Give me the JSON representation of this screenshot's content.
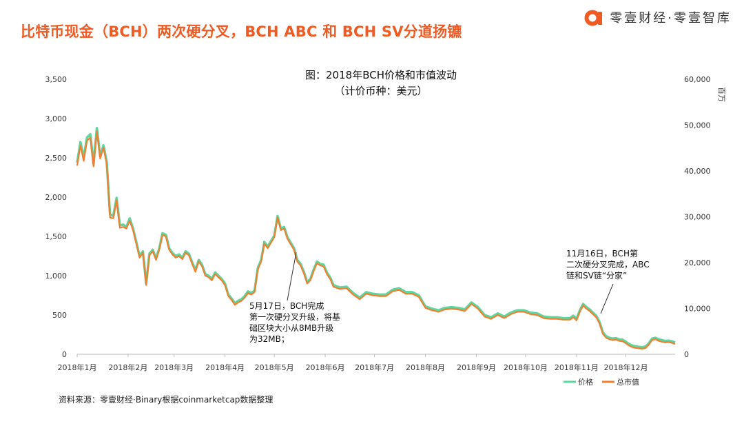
{
  "header": {
    "headline": "比特币现金（BCH）两次硬分叉，BCH ABC 和 BCH SV分道扬镳",
    "brand_text": "零壹财经·零壹智库",
    "brand_color": "#f05a23"
  },
  "footer": {
    "source": "资料来源：零壹财经·Binary根据coinmarketcap数据整理"
  },
  "chart_data": {
    "type": "line",
    "title": "图：2018年BCH价格和市值波动",
    "subtitle": "（计价币种：美元）",
    "y_left": {
      "range": [
        0,
        3500
      ],
      "ticks": [
        "0",
        "500",
        "1,000",
        "1,500",
        "2,000",
        "2,500",
        "3,000",
        "3,500"
      ]
    },
    "y_right": {
      "label": "百万",
      "range": [
        0,
        60000
      ],
      "ticks": [
        "0",
        "10,000",
        "20,000",
        "30,000",
        "40,000",
        "50,000",
        "60,000"
      ]
    },
    "x_ticks": [
      "2018年1月",
      "2018年2月",
      "2018年3月",
      "2018年4月",
      "2018年5月",
      "2018年6月",
      "2018年7月",
      "2018年8月",
      "2018年9月",
      "2018年10月",
      "2018年11月",
      "2018年12月"
    ],
    "x_days": [
      0,
      31,
      59,
      90,
      120,
      151,
      181,
      212,
      243,
      273,
      304,
      334
    ],
    "x_range_days": [
      0,
      364
    ],
    "grid": false,
    "legend_position": "bottom-right",
    "series": [
      {
        "name": "价格",
        "axis": "left",
        "color": "#5ed6a0",
        "x": [
          0,
          2,
          4,
          6,
          8,
          10,
          12,
          13,
          14,
          16,
          18,
          20,
          22,
          24,
          26,
          28,
          30,
          32,
          34,
          36,
          38,
          40,
          42,
          44,
          46,
          48,
          50,
          52,
          54,
          56,
          58,
          60,
          62,
          64,
          66,
          68,
          70,
          72,
          74,
          76,
          78,
          80,
          82,
          84,
          86,
          88,
          90,
          92,
          94,
          96,
          98,
          100,
          102,
          104,
          106,
          108,
          110,
          112,
          114,
          116,
          118,
          120,
          122,
          124,
          126,
          128,
          130,
          132,
          134,
          136,
          138,
          140,
          142,
          144,
          146,
          148,
          150,
          152,
          154,
          156,
          160,
          164,
          168,
          172,
          176,
          180,
          184,
          188,
          192,
          196,
          200,
          204,
          208,
          212,
          216,
          220,
          224,
          228,
          232,
          236,
          240,
          244,
          248,
          252,
          256,
          260,
          264,
          268,
          272,
          276,
          280,
          284,
          288,
          292,
          296,
          300,
          302,
          304,
          306,
          308,
          310,
          312,
          314,
          316,
          318,
          320,
          322,
          324,
          326,
          328,
          330,
          332,
          334,
          336,
          338,
          340,
          342,
          344,
          346,
          348,
          350,
          352,
          354,
          356,
          358,
          360,
          362,
          364
        ],
        "values": [
          2440,
          2700,
          2500,
          2760,
          2800,
          2420,
          2880,
          2700,
          2520,
          2660,
          2450,
          1780,
          1760,
          1990,
          1640,
          1650,
          1620,
          1730,
          1600,
          1430,
          1250,
          1310,
          900,
          1280,
          1330,
          1220,
          1350,
          1540,
          1520,
          1350,
          1290,
          1250,
          1270,
          1230,
          1310,
          1280,
          1170,
          1070,
          1200,
          1140,
          1020,
          1000,
          960,
          1040,
          1000,
          960,
          900,
          760,
          710,
          650,
          680,
          700,
          740,
          800,
          780,
          810,
          1100,
          1200,
          1430,
          1370,
          1440,
          1510,
          1760,
          1600,
          1620,
          1490,
          1420,
          1350,
          1200,
          1150,
          1050,
          920,
          960,
          1080,
          1180,
          1150,
          1140,
          1040,
          980,
          880,
          850,
          860,
          780,
          720,
          790,
          770,
          760,
          760,
          820,
          840,
          790,
          790,
          750,
          610,
          580,
          560,
          590,
          600,
          590,
          570,
          660,
          600,
          500,
          470,
          520,
          480,
          530,
          560,
          560,
          530,
          520,
          480,
          470,
          470,
          460,
          460,
          490,
          450,
          560,
          640,
          600,
          570,
          530,
          490,
          410,
          280,
          230,
          210,
          200,
          205,
          190,
          185,
          160,
          130,
          110,
          100,
          95,
          90,
          100,
          140,
          200,
          210,
          190,
          180,
          170,
          175,
          165,
          150
        ]
      },
      {
        "name": "总市值",
        "axis": "left",
        "color": "#f08030",
        "x": [
          0,
          2,
          4,
          6,
          8,
          10,
          12,
          13,
          14,
          16,
          18,
          20,
          22,
          24,
          26,
          28,
          30,
          32,
          34,
          36,
          38,
          40,
          42,
          44,
          46,
          48,
          50,
          52,
          54,
          56,
          58,
          60,
          62,
          64,
          66,
          68,
          70,
          72,
          74,
          76,
          78,
          80,
          82,
          84,
          86,
          88,
          90,
          92,
          94,
          96,
          98,
          100,
          102,
          104,
          106,
          108,
          110,
          112,
          114,
          116,
          118,
          120,
          122,
          124,
          126,
          128,
          130,
          132,
          134,
          136,
          138,
          140,
          142,
          144,
          146,
          148,
          150,
          152,
          154,
          156,
          160,
          164,
          168,
          172,
          176,
          180,
          184,
          188,
          192,
          196,
          200,
          204,
          208,
          212,
          216,
          220,
          224,
          228,
          232,
          236,
          240,
          244,
          248,
          252,
          256,
          260,
          264,
          268,
          272,
          276,
          280,
          284,
          288,
          292,
          296,
          300,
          302,
          304,
          306,
          308,
          310,
          312,
          314,
          316,
          318,
          320,
          322,
          324,
          326,
          328,
          330,
          332,
          334,
          336,
          338,
          340,
          342,
          344,
          346,
          348,
          350,
          352,
          354,
          356,
          358,
          360,
          362,
          364
        ],
        "values": [
          2400,
          2660,
          2460,
          2720,
          2760,
          2390,
          2840,
          2670,
          2490,
          2630,
          2420,
          1740,
          1730,
          1960,
          1610,
          1620,
          1600,
          1700,
          1580,
          1410,
          1230,
          1290,
          880,
          1260,
          1310,
          1200,
          1330,
          1520,
          1500,
          1330,
          1270,
          1230,
          1250,
          1210,
          1290,
          1260,
          1150,
          1050,
          1180,
          1120,
          1000,
          980,
          940,
          1020,
          980,
          940,
          880,
          740,
          690,
          630,
          660,
          680,
          720,
          780,
          760,
          790,
          1080,
          1180,
          1410,
          1350,
          1420,
          1490,
          1740,
          1580,
          1600,
          1470,
          1400,
          1330,
          1180,
          1130,
          1030,
          900,
          940,
          1060,
          1160,
          1130,
          1120,
          1020,
          960,
          860,
          830,
          840,
          760,
          700,
          770,
          750,
          740,
          740,
          800,
          820,
          770,
          770,
          730,
          590,
          560,
          540,
          570,
          580,
          570,
          550,
          640,
          580,
          480,
          450,
          500,
          460,
          510,
          540,
          540,
          510,
          500,
          460,
          450,
          450,
          440,
          440,
          470,
          430,
          540,
          620,
          580,
          550,
          510,
          470,
          390,
          260,
          210,
          190,
          180,
          185,
          170,
          165,
          140,
          110,
          90,
          80,
          75,
          70,
          80,
          120,
          180,
          190,
          170,
          160,
          150,
          155,
          145,
          130
        ]
      }
    ],
    "annotations": [
      {
        "text": "5月17日，BCH完成第一次硬分叉升级，将基础区块大小从8MB升级为32MB；",
        "target_x": 136,
        "target_y": 1330
      },
      {
        "text": "11月16日，BCH第二次硬分叉完成，ABC链和SV链“分家”",
        "target_x": 320,
        "target_y": 460
      }
    ]
  }
}
